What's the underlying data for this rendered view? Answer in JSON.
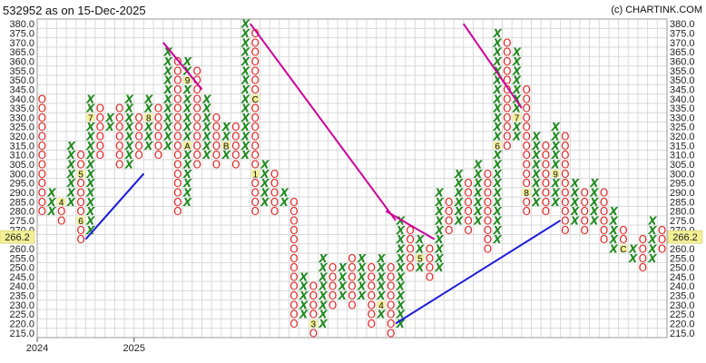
{
  "header": {
    "title": "532952 as on 15-Dec-2025",
    "credit": "(c) CHARTINK.COM"
  },
  "chart_data": {
    "type": "point-and-figure",
    "box_size": 5,
    "price_levels": [
      380,
      375,
      370,
      365,
      360,
      355,
      350,
      345,
      340,
      335,
      330,
      325,
      320,
      315,
      310,
      305,
      300,
      295,
      290,
      285,
      280,
      275,
      270,
      265,
      260,
      255,
      250,
      245,
      240,
      235,
      230,
      225,
      220,
      215
    ],
    "last_price": "266.2",
    "x_labels": [
      {
        "col": 0,
        "text": "2024"
      },
      {
        "col": 10,
        "text": "2025"
      }
    ],
    "columns": [
      {
        "t": "O",
        "hi": 340,
        "lo": 280
      },
      {
        "t": "X",
        "hi": 290,
        "lo": 280
      },
      {
        "t": "O",
        "hi": 285,
        "lo": 275
      },
      {
        "t": "X",
        "hi": 315,
        "lo": 285
      },
      {
        "t": "O",
        "hi": 310,
        "lo": 265
      },
      {
        "t": "X",
        "hi": 340,
        "lo": 270
      },
      {
        "t": "O",
        "hi": 335,
        "lo": 310
      },
      {
        "t": "X",
        "hi": 330,
        "lo": 325
      },
      {
        "t": "O",
        "hi": 335,
        "lo": 305
      },
      {
        "t": "X",
        "hi": 340,
        "lo": 305
      },
      {
        "t": "O",
        "hi": 330,
        "lo": 310
      },
      {
        "t": "X",
        "hi": 340,
        "lo": 315
      },
      {
        "t": "O",
        "hi": 335,
        "lo": 310
      },
      {
        "t": "X",
        "hi": 365,
        "lo": 315
      },
      {
        "t": "O",
        "hi": 360,
        "lo": 280
      },
      {
        "t": "X",
        "hi": 360,
        "lo": 285
      },
      {
        "t": "O",
        "hi": 355,
        "lo": 305
      },
      {
        "t": "X",
        "hi": 340,
        "lo": 310
      },
      {
        "t": "O",
        "hi": 330,
        "lo": 305
      },
      {
        "t": "X",
        "hi": 325,
        "lo": 310
      },
      {
        "t": "O",
        "hi": 325,
        "lo": 305
      },
      {
        "t": "X",
        "hi": 380,
        "lo": 310
      },
      {
        "t": "O",
        "hi": 375,
        "lo": 280
      },
      {
        "t": "X",
        "hi": 305,
        "lo": 285
      },
      {
        "t": "O",
        "hi": 300,
        "lo": 280
      },
      {
        "t": "X",
        "hi": 290,
        "lo": 285
      },
      {
        "t": "O",
        "hi": 285,
        "lo": 220
      },
      {
        "t": "X",
        "hi": 245,
        "lo": 225
      },
      {
        "t": "O",
        "hi": 240,
        "lo": 215
      },
      {
        "t": "X",
        "hi": 255,
        "lo": 220
      },
      {
        "t": "O",
        "hi": 250,
        "lo": 230
      },
      {
        "t": "X",
        "hi": 250,
        "lo": 235
      },
      {
        "t": "O",
        "hi": 255,
        "lo": 230
      },
      {
        "t": "X",
        "hi": 255,
        "lo": 235
      },
      {
        "t": "O",
        "hi": 250,
        "lo": 220
      },
      {
        "t": "X",
        "hi": 255,
        "lo": 225
      },
      {
        "t": "O",
        "hi": 250,
        "lo": 215
      },
      {
        "t": "X",
        "hi": 275,
        "lo": 220
      },
      {
        "t": "O",
        "hi": 270,
        "lo": 250
      },
      {
        "t": "X",
        "hi": 265,
        "lo": 250
      },
      {
        "t": "O",
        "hi": 260,
        "lo": 245
      },
      {
        "t": "X",
        "hi": 290,
        "lo": 250
      },
      {
        "t": "O",
        "hi": 285,
        "lo": 270
      },
      {
        "t": "X",
        "hi": 300,
        "lo": 275
      },
      {
        "t": "O",
        "hi": 295,
        "lo": 270
      },
      {
        "t": "X",
        "hi": 305,
        "lo": 275
      },
      {
        "t": "O",
        "hi": 300,
        "lo": 260
      },
      {
        "t": "X",
        "hi": 375,
        "lo": 265
      },
      {
        "t": "O",
        "hi": 370,
        "lo": 315
      },
      {
        "t": "X",
        "hi": 365,
        "lo": 320
      },
      {
        "t": "O",
        "hi": 345,
        "lo": 280
      },
      {
        "t": "X",
        "hi": 320,
        "lo": 285
      },
      {
        "t": "O",
        "hi": 315,
        "lo": 280
      },
      {
        "t": "X",
        "hi": 325,
        "lo": 285
      },
      {
        "t": "O",
        "hi": 320,
        "lo": 270
      },
      {
        "t": "X",
        "hi": 295,
        "lo": 275
      },
      {
        "t": "O",
        "hi": 290,
        "lo": 270
      },
      {
        "t": "X",
        "hi": 295,
        "lo": 275
      },
      {
        "t": "O",
        "hi": 290,
        "lo": 265
      },
      {
        "t": "X",
        "hi": 280,
        "lo": 260
      },
      {
        "t": "O",
        "hi": 270,
        "lo": 260
      },
      {
        "t": "X",
        "hi": 260,
        "lo": 255
      },
      {
        "t": "O",
        "hi": 265,
        "lo": 250
      },
      {
        "t": "X",
        "hi": 275,
        "lo": 255
      },
      {
        "t": "O",
        "hi": 270,
        "lo": 260
      }
    ],
    "month_markers": [
      {
        "col": 2,
        "price": 285,
        "text": "4"
      },
      {
        "col": 4,
        "price": 300,
        "text": "5"
      },
      {
        "col": 4,
        "price": 275,
        "text": "6"
      },
      {
        "col": 5,
        "price": 330,
        "text": "7"
      },
      {
        "col": 11,
        "price": 330,
        "text": "8"
      },
      {
        "col": 15,
        "price": 350,
        "text": "9"
      },
      {
        "col": 15,
        "price": 315,
        "text": "A"
      },
      {
        "col": 19,
        "price": 315,
        "text": "B"
      },
      {
        "col": 22,
        "price": 340,
        "text": "C"
      },
      {
        "col": 22,
        "price": 300,
        "text": "1"
      },
      {
        "col": 25,
        "price": 280,
        "text": "2"
      },
      {
        "col": 28,
        "price": 220,
        "text": "3"
      },
      {
        "col": 35,
        "price": 230,
        "text": "4"
      },
      {
        "col": 39,
        "price": 255,
        "text": "5"
      },
      {
        "col": 47,
        "price": 315,
        "text": "6"
      },
      {
        "col": 49,
        "price": 330,
        "text": "7"
      },
      {
        "col": 50,
        "price": 290,
        "text": "8"
      },
      {
        "col": 53,
        "price": 300,
        "text": "9"
      },
      {
        "col": 53,
        "price": 280,
        "text": "A"
      },
      {
        "col": 55,
        "price": 315,
        "text": "B"
      },
      {
        "col": 60,
        "price": 260,
        "text": "C"
      }
    ],
    "trendlines": [
      {
        "kind": "support",
        "from": {
          "col": 4.5,
          "price": 265
        },
        "to": {
          "col": 10.5,
          "price": 300
        }
      },
      {
        "kind": "resistance",
        "from": {
          "col": 12.5,
          "price": 370
        },
        "to": {
          "col": 16.5,
          "price": 345
        }
      },
      {
        "kind": "resistance",
        "from": {
          "col": 21.5,
          "price": 380
        },
        "to": {
          "col": 36.5,
          "price": 275
        }
      },
      {
        "kind": "resistance",
        "from": {
          "col": 35.5,
          "price": 280
        },
        "to": {
          "col": 40.5,
          "price": 265
        }
      },
      {
        "kind": "support",
        "from": {
          "col": 36.5,
          "price": 220
        },
        "to": {
          "col": 53.5,
          "price": 275
        }
      },
      {
        "kind": "resistance",
        "from": {
          "col": 43.5,
          "price": 380
        },
        "to": {
          "col": 49.5,
          "price": 335
        }
      }
    ],
    "colors": {
      "x": "#1f8a1f",
      "o": "#e02020",
      "support": "#1a1adb",
      "resistance": "#cc0099",
      "grid": "#d9d9d9",
      "label_bg": "#f3f095"
    }
  }
}
